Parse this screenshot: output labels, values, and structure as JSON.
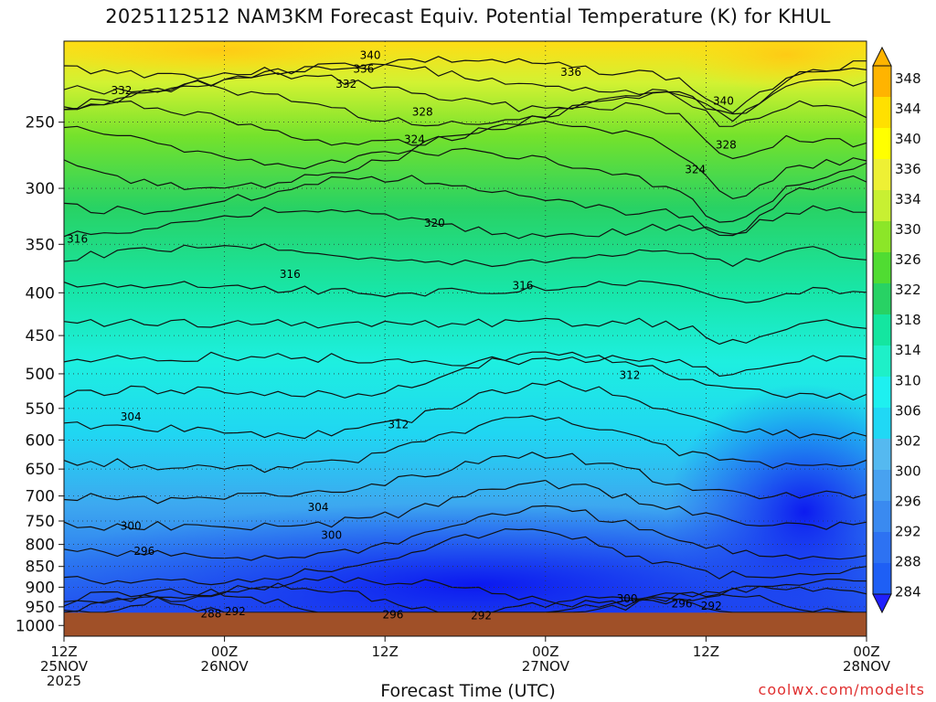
{
  "title": "2025112512 NAM3KM Forecast Equiv. Potential Temperature (K) for KHUL",
  "credit": "coolwx.com/modelts",
  "chart_data": {
    "type": "heatmap",
    "title": "2025112512 NAM3KM Forecast Equiv. Potential Temperature (K) for KHUL",
    "xlabel": "Forecast Time (UTC)",
    "ylabel": "",
    "units": "K",
    "x_ticks": [
      {
        "hour": 0,
        "lines": [
          "12Z",
          "25NOV",
          "2025"
        ]
      },
      {
        "hour": 12,
        "lines": [
          "00Z",
          "26NOV"
        ]
      },
      {
        "hour": 24,
        "lines": [
          "12Z"
        ]
      },
      {
        "hour": 36,
        "lines": [
          "00Z",
          "27NOV"
        ]
      },
      {
        "hour": 48,
        "lines": [
          "12Z"
        ]
      },
      {
        "hour": 60,
        "lines": [
          "00Z",
          "28NOV"
        ]
      }
    ],
    "xlim_hours": [
      0,
      60
    ],
    "y_ticks": [
      250,
      300,
      350,
      400,
      450,
      500,
      550,
      600,
      650,
      700,
      750,
      800,
      850,
      900,
      950,
      1000
    ],
    "ylim_hPa": [
      1030,
      200
    ],
    "y_scale": "log-pressure",
    "ground_pressure_hPa": 990,
    "colorbar": {
      "levels": [
        284,
        288,
        292,
        296,
        300,
        302,
        306,
        310,
        314,
        318,
        322,
        326,
        330,
        334,
        336,
        340,
        344,
        348
      ],
      "colors": [
        "#2020ff",
        "#1e5ff5",
        "#2d72f2",
        "#3a8af0",
        "#48a2f0",
        "#55b9f0",
        "#20d8f5",
        "#1ef0f0",
        "#1ef0c8",
        "#14e6a0",
        "#28d264",
        "#50dc32",
        "#8ce628",
        "#c8f032",
        "#eef034",
        "#ffff00",
        "#ffe000",
        "#ffb400"
      ]
    },
    "contour_labels": [
      {
        "text": "340",
        "hour": 22.9,
        "p": 208
      },
      {
        "text": "336",
        "hour": 22.4,
        "p": 216
      },
      {
        "text": "336",
        "hour": 37.9,
        "p": 218
      },
      {
        "text": "332",
        "hour": 21.1,
        "p": 225
      },
      {
        "text": "332",
        "hour": 4.3,
        "p": 229
      },
      {
        "text": "340",
        "hour": 49.3,
        "p": 236
      },
      {
        "text": "328",
        "hour": 26.8,
        "p": 243
      },
      {
        "text": "324",
        "hour": 26.2,
        "p": 262
      },
      {
        "text": "328",
        "hour": 49.5,
        "p": 266
      },
      {
        "text": "324",
        "hour": 47.2,
        "p": 285
      },
      {
        "text": "320",
        "hour": 27.7,
        "p": 330
      },
      {
        "text": "316",
        "hour": 1.0,
        "p": 345
      },
      {
        "text": "316",
        "hour": 16.9,
        "p": 380
      },
      {
        "text": "316",
        "hour": 34.3,
        "p": 392
      },
      {
        "text": "312",
        "hour": 42.3,
        "p": 502
      },
      {
        "text": "304",
        "hour": 5.0,
        "p": 563
      },
      {
        "text": "312",
        "hour": 25.0,
        "p": 575
      },
      {
        "text": "304",
        "hour": 19.0,
        "p": 722
      },
      {
        "text": "300",
        "hour": 5.0,
        "p": 760
      },
      {
        "text": "300",
        "hour": 20.0,
        "p": 780
      },
      {
        "text": "296",
        "hour": 6.0,
        "p": 815
      },
      {
        "text": "300",
        "hour": 42.1,
        "p": 929
      },
      {
        "text": "296",
        "hour": 46.2,
        "p": 942
      },
      {
        "text": "292",
        "hour": 48.4,
        "p": 948
      },
      {
        "text": "292",
        "hour": 12.8,
        "p": 962
      },
      {
        "text": "288",
        "hour": 11.0,
        "p": 968
      },
      {
        "text": "296",
        "hour": 24.6,
        "p": 971
      },
      {
        "text": "292",
        "hour": 31.2,
        "p": 973
      }
    ]
  }
}
